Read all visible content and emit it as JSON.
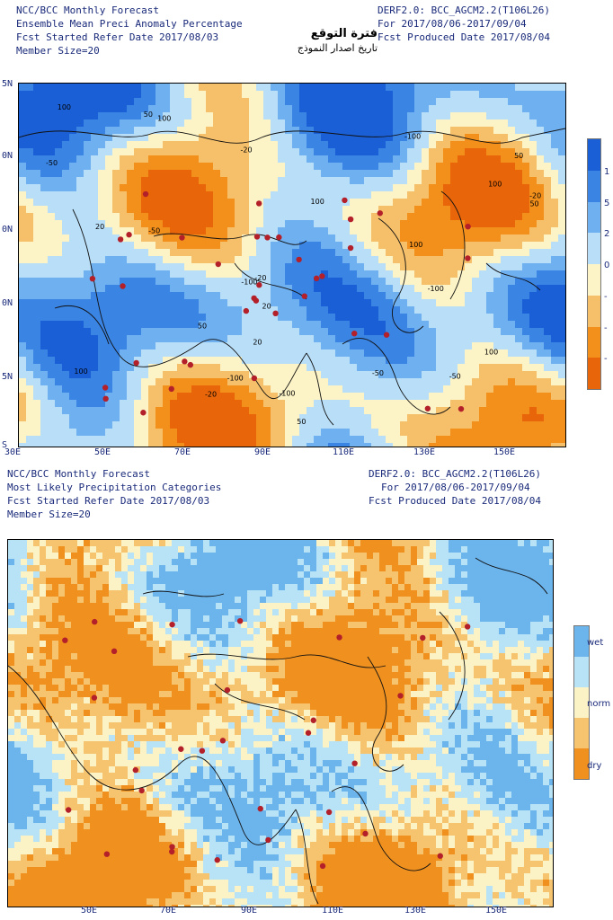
{
  "top": {
    "header_left": [
      "NCC/BCC Monthly Forecast",
      "Ensemble Mean Preci Anomaly Percentage",
      "Fcst Started Refer Date 2017/08/03",
      "Member Size=20"
    ],
    "header_right": [
      "DERF2.0: BCC_AGCM2.2(T106L26)",
      "For 2017/08/06-2017/09/04",
      "Fcst Produced Date 2017/08/04"
    ],
    "arabic_title": "فترة التوقع",
    "arabic_subtitle": "تاريخ اصدار النموذج",
    "x_ticks": [
      "30E",
      "50E",
      "70E",
      "90E",
      "110E",
      "130E",
      "150E"
    ],
    "y_ticks": [
      "5N",
      "0N",
      "0N",
      "0N",
      "5N",
      "S"
    ],
    "contour_labels": [
      "-20",
      "20",
      "50",
      "-50",
      "100",
      "-100"
    ],
    "colorbar": {
      "labels": [
        "1",
        "5",
        "2",
        "0",
        "-",
        "-",
        "-"
      ],
      "colors": [
        "#1a5fd6",
        "#3a84e4",
        "#6fb0f0",
        "#b9def8",
        "#fcf3c6",
        "#f6c06a",
        "#f3901c",
        "#e8650a"
      ]
    }
  },
  "bottom": {
    "header_left": [
      "NCC/BCC Monthly Forecast",
      "Most Likely Precipitation Categories",
      "Fcst Started Refer Date 2017/08/03",
      "Member Size=20"
    ],
    "header_right": [
      "DERF2.0: BCC_AGCM2.2(T106L26)",
      "For 2017/08/06-2017/09/04",
      "Fcst Produced Date 2017/08/04"
    ],
    "x_ticks": [
      "50E",
      "70E",
      "90E",
      "110E",
      "130E",
      "150E"
    ],
    "colorbar": {
      "labels": [
        "wet",
        "norm",
        "dry"
      ],
      "colors": [
        "#6cb4ec",
        "#b8e2f6",
        "#fbf3c5",
        "#f6c36e",
        "#f0901e"
      ]
    }
  }
}
